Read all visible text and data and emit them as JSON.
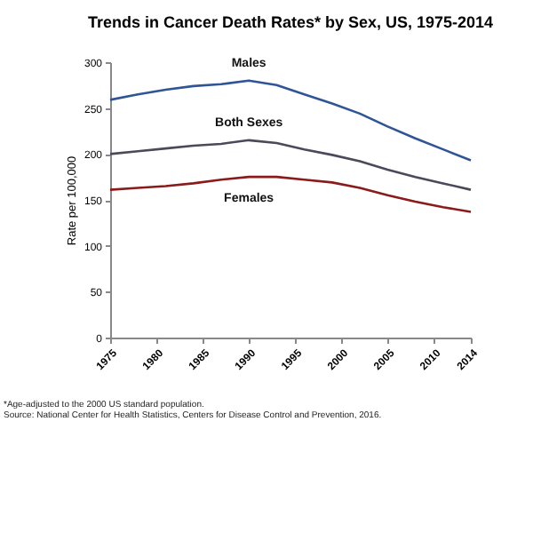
{
  "chart_data": {
    "type": "line",
    "title": "Trends in Cancer Death Rates* by Sex, US, 1975-2014",
    "ylabel": "Rate per 100,000",
    "x": [
      1975,
      1978,
      1981,
      1984,
      1987,
      1990,
      1993,
      1996,
      1999,
      2002,
      2005,
      2008,
      2011,
      2014
    ],
    "series": [
      {
        "name": "Males",
        "color": "#2f5597",
        "values": [
          259,
          265,
          270,
          274,
          276,
          280,
          275,
          265,
          255,
          244,
          230,
          217,
          205,
          193
        ]
      },
      {
        "name": "Both Sexes",
        "color": "#4a4a5a",
        "values": [
          200,
          203,
          206,
          209,
          211,
          215,
          212,
          205,
          199,
          192,
          183,
          175,
          168,
          161
        ]
      },
      {
        "name": "Females",
        "color": "#8b1a1a",
        "values": [
          161,
          163,
          165,
          168,
          172,
          175,
          175,
          172,
          169,
          163,
          155,
          148,
          142,
          137
        ]
      }
    ],
    "xlim": [
      1975,
      2014
    ],
    "xticks": [
      1975,
      1980,
      1985,
      1990,
      1995,
      2000,
      2005,
      2010,
      2014
    ],
    "ylim": [
      0,
      300
    ],
    "yticks": [
      0,
      50,
      100,
      150,
      200,
      250,
      300
    ],
    "grid": false,
    "legend": false,
    "annotations": [
      "*Age-adjusted to the 2000 US standard population.",
      "Source: National Center for Health Statistics, Centers for Disease Control and Prevention, 2016."
    ]
  }
}
